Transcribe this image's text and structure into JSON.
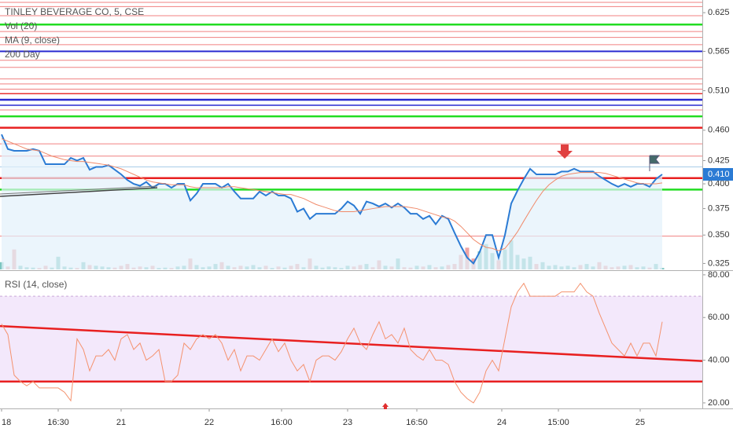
{
  "chart_data": [
    {
      "type": "line",
      "title": "TINLEY BEVERAGE CO, 5, CSE",
      "indicators": [
        "Vol (20)",
        "MA (9, close)",
        "200 Day"
      ],
      "log_scale": true,
      "ylim": [
        0.32,
        0.646
      ],
      "yticks": [
        0.625,
        0.565,
        {
          "value": 0.51,
          "label": "0.510"
        },
        {
          "value": 0.46,
          "label": "0.460"
        },
        0.425,
        {
          "value": 0.4,
          "label": "0.400"
        },
        0.375,
        {
          "value": 0.35,
          "label": "0.350"
        },
        0.325
      ],
      "last_label": "0.410",
      "series": [
        {
          "color": "#2b7bd4",
          "values": [
            0.455,
            0.438,
            0.436,
            0.436,
            0.436,
            0.438,
            0.436,
            0.421,
            0.421,
            0.421,
            0.421,
            0.428,
            0.425,
            0.428,
            0.415,
            0.418,
            0.418,
            0.42,
            0.415,
            0.41,
            0.404,
            0.4,
            0.398,
            0.402,
            0.396,
            0.4,
            0.4,
            0.396,
            0.4,
            0.4,
            0.383,
            0.39,
            0.4,
            0.4,
            0.4,
            0.396,
            0.4,
            0.392,
            0.385,
            0.385,
            0.385,
            0.392,
            0.388,
            0.392,
            0.388,
            0.388,
            0.385,
            0.372,
            0.375,
            0.365,
            0.37,
            0.37,
            0.37,
            0.37,
            0.375,
            0.382,
            0.378,
            0.37,
            0.382,
            0.38,
            0.377,
            0.38,
            0.376,
            0.38,
            0.376,
            0.37,
            0.37,
            0.365,
            0.368,
            0.36,
            0.368,
            0.365,
            0.352,
            0.34,
            0.33,
            0.325,
            0.335,
            0.35,
            0.35,
            0.33,
            0.35,
            0.38,
            0.393,
            0.405,
            0.416,
            0.41,
            0.41,
            0.41,
            0.41,
            0.413,
            0.413,
            0.416,
            0.413,
            0.413,
            0.413,
            0.408,
            0.404,
            0.4,
            0.397,
            0.4,
            0.397,
            0.4,
            0.4,
            0.397,
            0.405,
            0.41
          ]
        },
        {
          "color": "#f08a6a",
          "values": [
            0.45,
            0.447,
            0.444,
            0.441,
            0.438,
            0.437,
            0.436,
            0.433,
            0.43,
            0.428,
            0.426,
            0.425,
            0.424,
            0.424,
            0.423,
            0.422,
            0.421,
            0.42,
            0.418,
            0.416,
            0.413,
            0.41,
            0.407,
            0.404,
            0.402,
            0.401,
            0.4,
            0.399,
            0.399,
            0.399,
            0.397,
            0.396,
            0.396,
            0.396,
            0.396,
            0.396,
            0.397,
            0.397,
            0.396,
            0.395,
            0.394,
            0.393,
            0.392,
            0.391,
            0.39,
            0.389,
            0.389,
            0.387,
            0.385,
            0.382,
            0.379,
            0.377,
            0.375,
            0.373,
            0.372,
            0.372,
            0.372,
            0.373,
            0.374,
            0.375,
            0.376,
            0.377,
            0.377,
            0.377,
            0.377,
            0.376,
            0.375,
            0.373,
            0.371,
            0.369,
            0.367,
            0.366,
            0.363,
            0.358,
            0.352,
            0.346,
            0.342,
            0.339,
            0.338,
            0.336,
            0.338,
            0.345,
            0.353,
            0.363,
            0.373,
            0.383,
            0.392,
            0.399,
            0.404,
            0.408,
            0.41,
            0.411,
            0.412,
            0.412,
            0.412,
            0.412,
            0.411,
            0.409,
            0.407,
            0.405,
            0.403,
            0.401,
            0.4,
            0.4,
            0.4,
            0.401
          ]
        }
      ],
      "volume": {
        "ylim": [
          0,
          130
        ],
        "up_color": "#7cc6c0",
        "down_color": "#eea3a3",
        "values": [
          20,
          8,
          55,
          10,
          6,
          5,
          4,
          10,
          5,
          35,
          8,
          5,
          4,
          20,
          12,
          10,
          8,
          6,
          5,
          10,
          15,
          5,
          8,
          6,
          10,
          4,
          5,
          4,
          8,
          10,
          30,
          12,
          6,
          8,
          15,
          20,
          10,
          6,
          10,
          8,
          12,
          6,
          10,
          4,
          8,
          5,
          10,
          15,
          6,
          30,
          10,
          5,
          8,
          6,
          4,
          10,
          8,
          12,
          15,
          6,
          25,
          10,
          8,
          30,
          6,
          5,
          10,
          8,
          12,
          6,
          8,
          12,
          15,
          40,
          60,
          30,
          50,
          70,
          45,
          25,
          55,
          80,
          40,
          30,
          35,
          15,
          20,
          10,
          12,
          8,
          10,
          6,
          12,
          15,
          8,
          20,
          10,
          6,
          8,
          10,
          12,
          6,
          8,
          5,
          15,
          4
        ]
      },
      "levels": [
        {
          "value": 0.642,
          "color": "#f08080",
          "width": 1
        },
        {
          "value": 0.635,
          "color": "#f08080",
          "width": 1
        },
        {
          "value": 0.62,
          "color": "#f08080",
          "width": 1
        },
        {
          "value": 0.606,
          "color": "#22dd22",
          "width": 2.5
        },
        {
          "value": 0.595,
          "color": "#f08080",
          "width": 1
        },
        {
          "value": 0.586,
          "color": "#f08080",
          "width": 1
        },
        {
          "value": 0.575,
          "color": "#f08080",
          "width": 1
        },
        {
          "value": 0.565,
          "color": "#2a2ad0",
          "width": 2
        },
        {
          "value": 0.552,
          "color": "#f08080",
          "width": 1
        },
        {
          "value": 0.542,
          "color": "#f08080",
          "width": 1
        },
        {
          "value": 0.526,
          "color": "#f08080",
          "width": 1
        },
        {
          "value": 0.519,
          "color": "#f08080",
          "width": 1
        },
        {
          "value": 0.512,
          "color": "#f08080",
          "width": 1
        },
        {
          "value": 0.506,
          "color": "#e83030",
          "width": 1.5
        },
        {
          "value": 0.498,
          "color": "#2a2ad0",
          "width": 2.5
        },
        {
          "value": 0.491,
          "color": "#2a2ad0",
          "width": 1.5
        },
        {
          "value": 0.485,
          "color": "#f08080",
          "width": 1
        },
        {
          "value": 0.477,
          "color": "#22dd22",
          "width": 2.5
        },
        {
          "value": 0.463,
          "color": "#e82020",
          "width": 2.5
        },
        {
          "value": 0.444,
          "color": "#f08080",
          "width": 1
        },
        {
          "value": 0.43,
          "color": "#f08080",
          "width": 1
        },
        {
          "value": 0.418,
          "color": "#a8cde8",
          "width": 1
        },
        {
          "value": 0.406,
          "color": "#e82020",
          "width": 2.5
        },
        {
          "value": 0.394,
          "color": "#22dd22",
          "width": 2.5
        },
        {
          "value": 0.349,
          "color": "#f08080",
          "width": 1
        }
      ]
    },
    {
      "type": "line",
      "title": "RSI (14, close)",
      "ylim": [
        17.4,
        81.8
      ],
      "yticks": [
        {
          "value": 80,
          "label": "80.00"
        },
        {
          "value": 60,
          "label": "60.00"
        },
        {
          "value": 40,
          "label": "40.00"
        },
        {
          "value": 20,
          "label": "20.00"
        }
      ],
      "band": [
        30,
        70
      ],
      "xticks": [
        {
          "value": 0,
          "label": "18"
        },
        {
          "value": 9,
          "label": "16:30"
        },
        {
          "value": 19,
          "label": "21"
        },
        {
          "value": 33,
          "label": "22"
        },
        {
          "value": 44.5,
          "label": "16:00"
        },
        {
          "value": 55,
          "label": "23"
        },
        {
          "value": 66,
          "label": "16:50"
        },
        {
          "value": 79.5,
          "label": "24"
        },
        {
          "value": 88.5,
          "label": "15:00"
        },
        {
          "value": 101.5,
          "label": "25"
        }
      ],
      "series": [
        {
          "color": "#f4926e",
          "values": [
            57,
            52,
            33,
            30,
            28,
            30,
            27,
            27,
            27,
            27,
            25,
            21,
            50,
            45,
            35,
            42,
            42,
            45,
            40,
            50,
            52,
            45,
            48,
            40,
            42,
            45,
            30,
            30,
            33,
            48,
            45,
            50,
            52,
            50,
            52,
            48,
            40,
            45,
            35,
            42,
            42,
            40,
            45,
            50,
            44,
            48,
            40,
            35,
            38,
            30,
            40,
            42,
            42,
            40,
            44,
            50,
            55,
            48,
            45,
            52,
            58,
            50,
            52,
            48,
            55,
            45,
            42,
            40,
            45,
            40,
            40,
            38,
            30,
            25,
            22,
            20,
            25,
            35,
            40,
            35,
            50,
            65,
            72,
            76,
            70,
            70,
            70,
            70,
            70,
            72,
            72,
            72,
            76,
            72,
            70,
            62,
            55,
            48,
            45,
            42,
            48,
            42,
            48,
            48,
            42,
            58
          ]
        }
      ],
      "trendline": {
        "color": "#e82020",
        "values": [
          56,
          39.6
        ]
      },
      "levels": [
        {
          "value": 30,
          "color": "#e82020",
          "width": 2.5
        }
      ]
    }
  ]
}
